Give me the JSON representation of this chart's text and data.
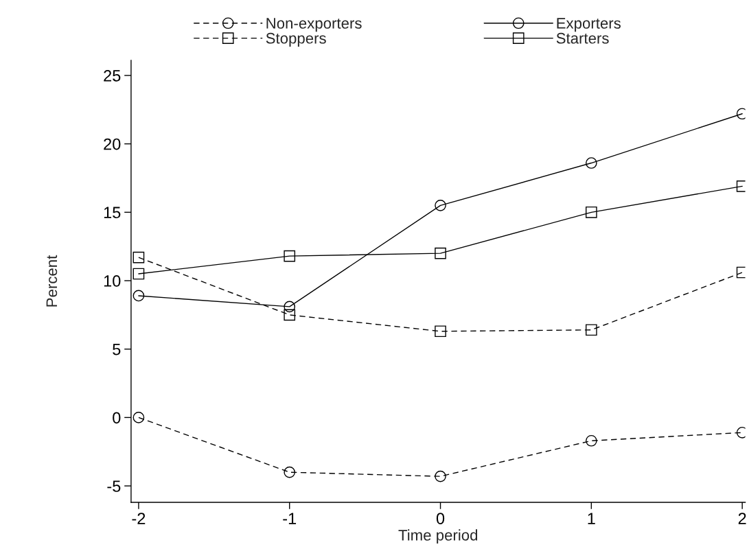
{
  "chart_data": {
    "type": "line",
    "xlabel": "Time period",
    "ylabel": "Percent",
    "x": [
      -2,
      -1,
      0,
      1,
      2
    ],
    "series": [
      {
        "name": "Non-exporters",
        "color": "#000000",
        "marker": "circle",
        "line_style": "dashed",
        "values": [
          0.0,
          -4.0,
          -4.3,
          -1.7,
          -1.1
        ]
      },
      {
        "name": "Exporters",
        "color": "#000000",
        "marker": "circle",
        "line_style": "solid",
        "values": [
          8.9,
          8.1,
          15.5,
          18.6,
          22.2
        ]
      },
      {
        "name": "Stoppers",
        "color": "#000000",
        "marker": "square",
        "line_style": "dashed",
        "values": [
          11.7,
          7.5,
          6.3,
          6.4,
          10.6
        ]
      },
      {
        "name": "Starters",
        "color": "#000000",
        "marker": "square",
        "line_style": "solid",
        "values": [
          10.5,
          11.8,
          12.0,
          15.0,
          16.9
        ]
      }
    ],
    "xlim": [
      -2.05,
      2.02
    ],
    "xticks": [
      -2,
      -1,
      0,
      1,
      2
    ],
    "ylim": [
      -6.2,
      26.1
    ],
    "yticks": [
      -5,
      0,
      5,
      10,
      15,
      20,
      25
    ],
    "grid": false,
    "legend": "top"
  }
}
